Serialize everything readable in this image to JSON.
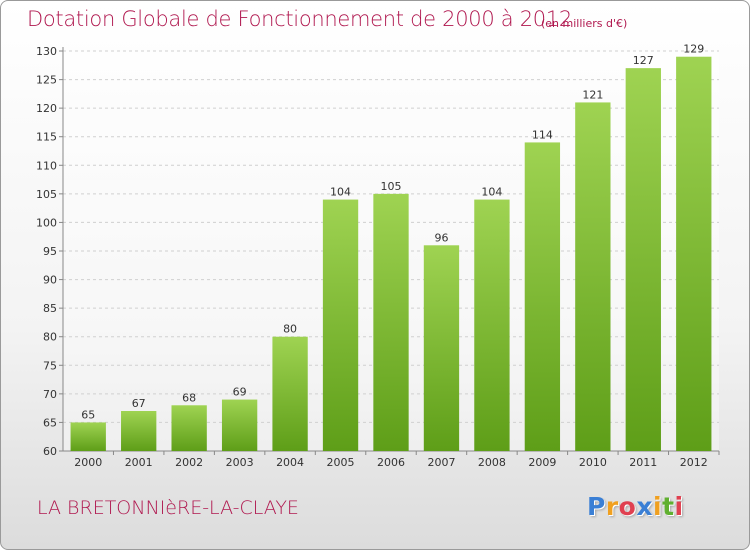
{
  "header": {
    "title": "Dotation Globale de Fonctionnement de 2000 à 2012",
    "unit": "(en milliers d'€)"
  },
  "footer": {
    "commune": "LA BRETONNIèRE-LA-CLAYE",
    "logo_letters": [
      "P",
      "r",
      "o",
      "x",
      "i",
      "t",
      "i"
    ],
    "logo_colors": [
      "#3a7fd5",
      "#f0a020",
      "#e04050",
      "#3a7fd5",
      "#f0a020",
      "#60b030",
      "#e04050"
    ]
  },
  "colors": {
    "accent": "#b0184f",
    "bar_top": "#9fd352",
    "bar_bottom": "#5e9e18"
  },
  "chart_data": {
    "type": "bar",
    "title": "Dotation Globale de Fonctionnement de 2000 à 2012",
    "subtitle": "(en milliers d'€)",
    "xlabel": "",
    "ylabel": "",
    "categories": [
      "2000",
      "2001",
      "2002",
      "2003",
      "2004",
      "2005",
      "2006",
      "2007",
      "2008",
      "2009",
      "2010",
      "2011",
      "2012"
    ],
    "values": [
      65,
      67,
      68,
      69,
      80,
      104,
      105,
      96,
      104,
      114,
      121,
      127,
      129
    ],
    "ylim": [
      60,
      130
    ],
    "yticks": [
      60,
      65,
      70,
      75,
      80,
      85,
      90,
      95,
      100,
      105,
      110,
      115,
      120,
      125,
      130
    ],
    "grid": true
  }
}
